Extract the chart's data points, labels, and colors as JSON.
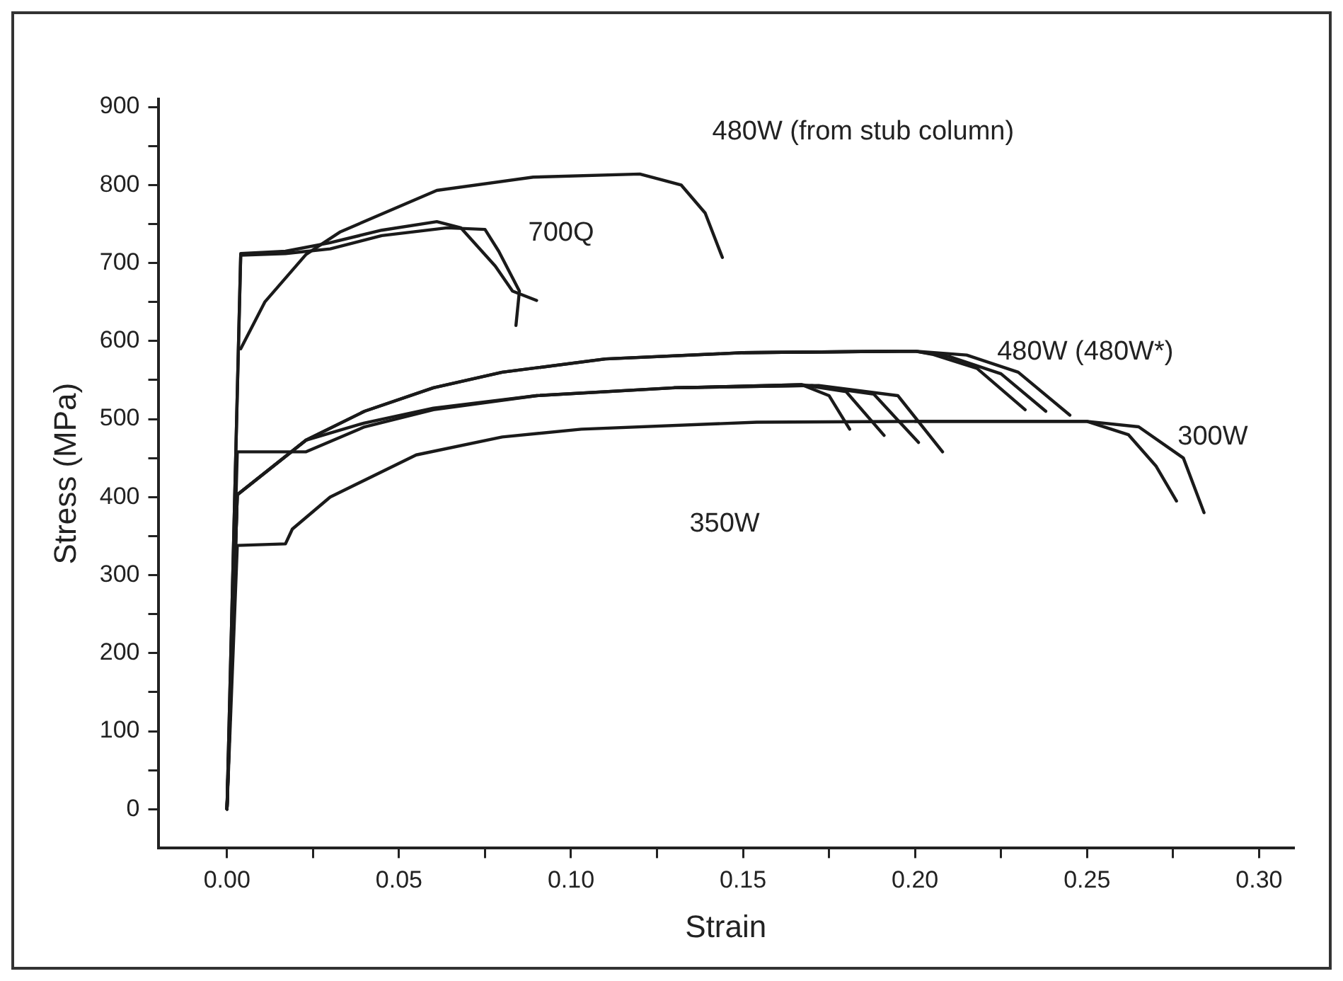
{
  "chart_data": {
    "type": "line",
    "xlabel": "Strain",
    "ylabel": "Stress (MPa)",
    "xlim": [
      -0.02,
      0.31
    ],
    "ylim": [
      -50,
      910
    ],
    "xticks": [
      {
        "value": 0,
        "label": "0.00"
      },
      {
        "value": 0.025,
        "label": null
      },
      {
        "value": 0.05,
        "label": "0.05"
      },
      {
        "value": 0.075,
        "label": null
      },
      {
        "value": 0.1,
        "label": "0.10"
      },
      {
        "value": 0.125,
        "label": null
      },
      {
        "value": 0.15,
        "label": "0.15"
      },
      {
        "value": 0.175,
        "label": null
      },
      {
        "value": 0.2,
        "label": "0.20"
      },
      {
        "value": 0.225,
        "label": null
      },
      {
        "value": 0.25,
        "label": "0.25"
      },
      {
        "value": 0.275,
        "label": null
      },
      {
        "value": 0.3,
        "label": "0.30"
      }
    ],
    "yticks": [
      0,
      {
        "value": 50,
        "label": null
      },
      100,
      {
        "value": 150,
        "label": null
      },
      200,
      {
        "value": 250,
        "label": null
      },
      300,
      {
        "value": 350,
        "label": null
      },
      400,
      {
        "value": 450,
        "label": null
      },
      500,
      {
        "value": 550,
        "label": null
      },
      600,
      {
        "value": 650,
        "label": null
      },
      700,
      {
        "value": 750,
        "label": null
      },
      800,
      {
        "value": 850,
        "label": null
      },
      900
    ],
    "grid": false,
    "legend": false,
    "marker": "none",
    "line_style": "solid",
    "series": [
      {
        "color": "#1a1a1a",
        "x": [
          0,
          0.004,
          0.017,
          0.03,
          0.045,
          0.061,
          0.068,
          0.078,
          0.083,
          0.09
        ],
        "values": [
          0,
          712,
          715,
          726,
          742,
          753,
          745,
          696,
          664,
          652
        ]
      },
      {
        "color": "#1a1a1a",
        "x": [
          0,
          0.004,
          0.017,
          0.03,
          0.045,
          0.064,
          0.075,
          0.079,
          0.085,
          0.084
        ],
        "values": [
          0,
          710,
          712,
          718,
          735,
          745,
          743,
          715,
          664,
          620
        ]
      },
      {
        "color": "#1a1a1a",
        "x": [
          0.004,
          0.011,
          0.023,
          0.033,
          0.061,
          0.089,
          0.12,
          0.132,
          0.139,
          0.144
        ],
        "values": [
          590,
          650,
          711,
          740,
          793,
          810,
          814,
          800,
          764,
          707
        ]
      },
      {
        "color": "#1a1a1a",
        "x": [
          0,
          0.003,
          0.023,
          0.04,
          0.06,
          0.08,
          0.11,
          0.15,
          0.2,
          0.215,
          0.23,
          0.245
        ],
        "values": [
          0,
          403,
          473,
          510,
          540,
          560,
          577,
          585,
          587,
          582,
          560,
          505
        ]
      },
      {
        "color": "#1a1a1a",
        "x": [
          0,
          0.003,
          0.023,
          0.04,
          0.06,
          0.08,
          0.11,
          0.15,
          0.2,
          0.21,
          0.225,
          0.238
        ],
        "values": [
          0,
          403,
          473,
          510,
          540,
          560,
          577,
          585,
          587,
          580,
          558,
          510
        ]
      },
      {
        "color": "#1a1a1a",
        "x": [
          0.15,
          0.2,
          0.205,
          0.218,
          0.232
        ],
        "values": [
          585,
          587,
          583,
          565,
          512
        ]
      },
      {
        "color": "#1a1a1a",
        "x": [
          0,
          0.003,
          0.023,
          0.04,
          0.06,
          0.09,
          0.13,
          0.167,
          0.175,
          0.181
        ],
        "values": [
          0,
          458,
          458,
          490,
          512,
          530,
          540,
          544,
          530,
          487
        ]
      },
      {
        "color": "#1a1a1a",
        "x": [
          0,
          0.003,
          0.023,
          0.04,
          0.06,
          0.09,
          0.13,
          0.167,
          0.18,
          0.191
        ],
        "values": [
          0,
          403,
          473,
          495,
          514,
          530,
          540,
          544,
          535,
          479
        ]
      },
      {
        "color": "#1a1a1a",
        "x": [
          0.13,
          0.17,
          0.188,
          0.201
        ],
        "values": [
          540,
          543,
          532,
          470
        ]
      },
      {
        "color": "#1a1a1a",
        "x": [
          0.13,
          0.172,
          0.195,
          0.208
        ],
        "values": [
          540,
          543,
          530,
          458
        ]
      },
      {
        "color": "#1a1a1a",
        "x": [
          0,
          0.003,
          0.017,
          0.019,
          0.03,
          0.055,
          0.08,
          0.103,
          0.154,
          0.2,
          0.25,
          0.262,
          0.27,
          0.276
        ],
        "values": [
          0,
          338,
          340,
          359,
          400,
          454,
          477,
          487,
          496,
          497,
          497,
          480,
          440,
          395
        ]
      },
      {
        "color": "#1a1a1a",
        "x": [
          0.2,
          0.25,
          0.265,
          0.278,
          0.284
        ],
        "values": [
          497,
          497,
          490,
          450,
          380
        ]
      }
    ],
    "annotations": [
      "480W (from stub column)",
      "700Q",
      "480W (480W*)",
      "300W",
      "350W"
    ]
  }
}
